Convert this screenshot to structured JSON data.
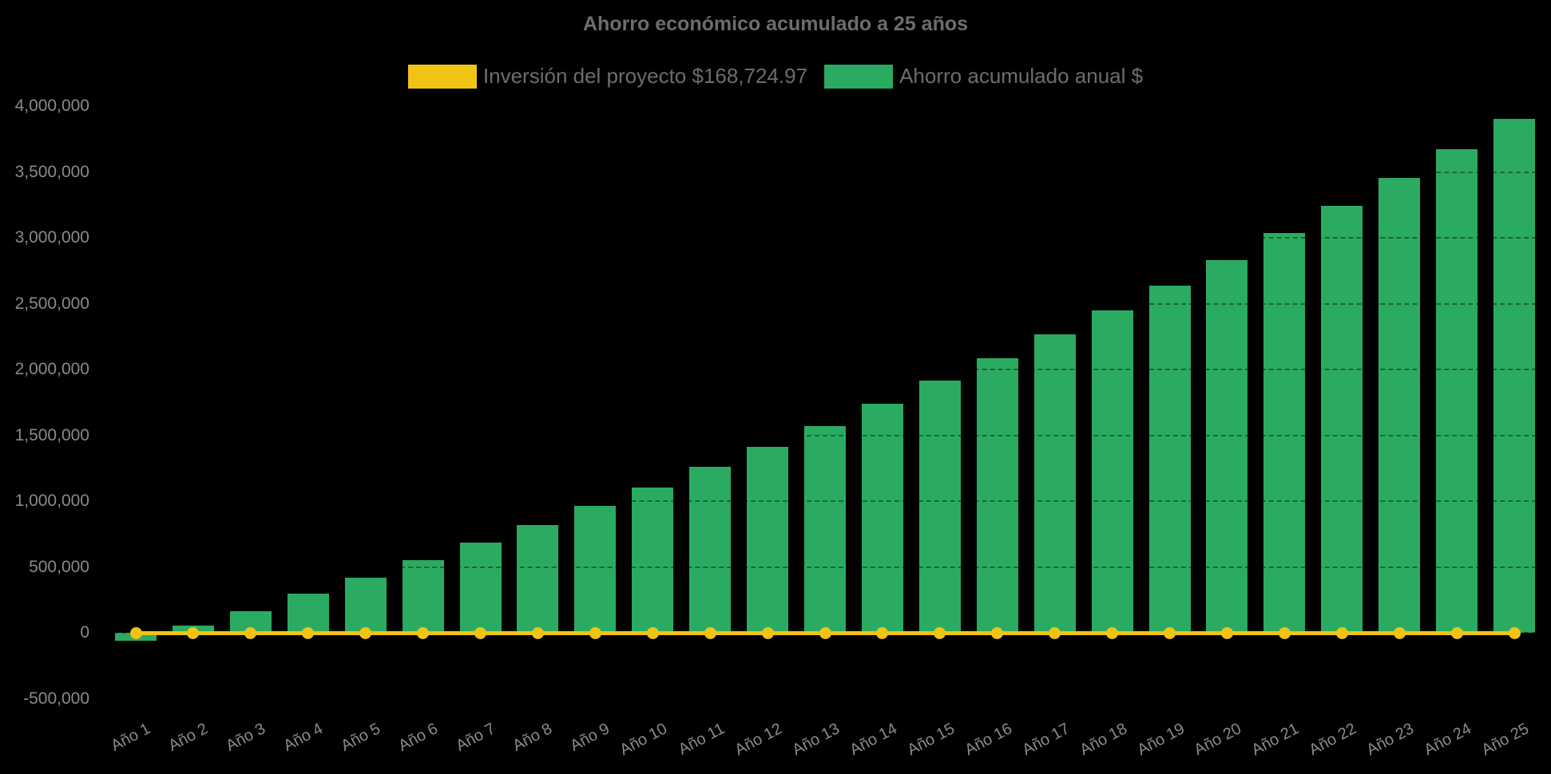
{
  "title": "Ahorro económico acumulado a 25 años",
  "legend": {
    "items": [
      {
        "label": "Inversión del proyecto $168,724.97",
        "color": "#F0C414",
        "series": "line"
      },
      {
        "label": "Ahorro acumulado anual $",
        "color": "#2BAB61",
        "series": "bar"
      }
    ]
  },
  "colors": {
    "background": "#000000",
    "bar_green": "#2BAB61",
    "line_yellow": "#F0C414",
    "title_text": "#6D6D6D",
    "tick_text": "#8A8A8A"
  },
  "chart_data": {
    "type": "bar",
    "title": "Ahorro económico acumulado a 25 años",
    "categories": [
      "Año 1",
      "Año 2",
      "Año 3",
      "Año 4",
      "Año 5",
      "Año 6",
      "Año 7",
      "Año 8",
      "Año 9",
      "Año 10",
      "Año 11",
      "Año 12",
      "Año 13",
      "Año 14",
      "Año 15",
      "Año 16",
      "Año 17",
      "Año 18",
      "Año 19",
      "Año 20",
      "Año 21",
      "Año 22",
      "Año 23",
      "Año 24",
      "Año 25"
    ],
    "series": [
      {
        "name": "Ahorro acumulado anual $",
        "type": "bar",
        "color": "#2BAB61",
        "values": [
          -60000,
          55000,
          164000,
          297000,
          419000,
          552000,
          686000,
          820000,
          965000,
          1103000,
          1263000,
          1414000,
          1572000,
          1742000,
          1915000,
          2082000,
          2264000,
          2446000,
          2634000,
          2829000,
          3035000,
          3241000,
          3454000,
          3672000,
          3903000
        ]
      },
      {
        "name": "Inversión del proyecto $168,724.97",
        "type": "line",
        "color": "#F0C414",
        "values": [
          0,
          0,
          0,
          0,
          0,
          0,
          0,
          0,
          0,
          0,
          0,
          0,
          0,
          0,
          0,
          0,
          0,
          0,
          0,
          0,
          0,
          0,
          0,
          0,
          0
        ],
        "note": "línea plana con puntos dibujada sobre el nivel cero del eje"
      }
    ],
    "ylim": [
      -500000,
      4000000
    ],
    "y_ticks": [
      4000000,
      3500000,
      3000000,
      2500000,
      2000000,
      1500000,
      1000000,
      500000,
      0,
      -500000
    ],
    "y_tick_labels": [
      "4,000,000",
      "3,500,000",
      "3,000,000",
      "2,500,000",
      "2,000,000",
      "1,500,000",
      "1,000,000",
      "500,000",
      "0",
      "-500,000"
    ],
    "xlabel": "",
    "ylabel": "",
    "grid": "faint dashed dark gridlines visible only over bars",
    "legend_position": "top",
    "background": "#000000"
  }
}
